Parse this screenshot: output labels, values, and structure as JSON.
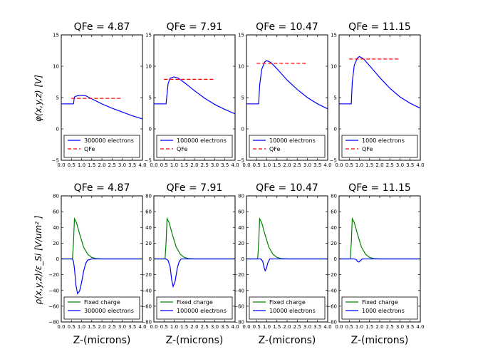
{
  "figure": {
    "ylabel_top": "φ(x,y,z) [V]",
    "ylabel_bottom": "ρ(x,y,z)/ε_Si [V/um² ]",
    "xlabel": "Z-(microns)"
  },
  "colors": {
    "electrons": "#0000ff",
    "qfe": "#ff0000",
    "fixed_charge": "#008000",
    "axes": "#000000"
  },
  "chart_data": [
    {
      "type": "line",
      "title": "QFe = 4.87",
      "ylabel": "φ(x,y,z) [V]",
      "xlabel": "",
      "xlim": [
        0.0,
        4.0
      ],
      "ylim": [
        -5,
        15
      ],
      "xticks": [
        "0.0",
        "0.5",
        "1.0",
        "1.5",
        "2.0",
        "2.5",
        "3.0",
        "3.5",
        "4.0"
      ],
      "yticks": [
        "−5",
        "0",
        "5",
        "10",
        "15"
      ],
      "legend": [
        "300000 electrons",
        "QFe"
      ],
      "series": [
        {
          "name": "300000 electrons",
          "color": "#0000ff",
          "x": [
            0,
            0.6,
            0.65,
            0.8,
            1.0,
            1.2,
            1.5,
            2.0,
            2.5,
            3.0,
            3.5,
            4.0
          ],
          "y": [
            4,
            4,
            5.1,
            5.3,
            5.35,
            5.3,
            4.8,
            4.0,
            3.3,
            2.7,
            2.1,
            1.6
          ]
        },
        {
          "name": "QFe",
          "color": "#ff0000",
          "dashed": true,
          "x": [
            0.5,
            3.0
          ],
          "y": [
            4.87,
            4.87
          ]
        }
      ]
    },
    {
      "type": "line",
      "title": "QFe = 7.91",
      "ylabel": "",
      "xlabel": "",
      "xlim": [
        0.0,
        4.0
      ],
      "ylim": [
        -5,
        15
      ],
      "xticks": [
        "0.0",
        "0.5",
        "1.0",
        "1.5",
        "2.0",
        "2.5",
        "3.0",
        "3.5",
        "4.0"
      ],
      "yticks": [
        "−5",
        "0",
        "5",
        "10",
        "15"
      ],
      "legend": [
        "100000 electrons",
        "QFe"
      ],
      "series": [
        {
          "name": "100000 electrons",
          "color": "#0000ff",
          "x": [
            0,
            0.6,
            0.7,
            0.8,
            1.0,
            1.2,
            1.5,
            2.0,
            2.5,
            3.0,
            3.5,
            4.0
          ],
          "y": [
            4,
            4,
            7.2,
            8.1,
            8.3,
            8.1,
            7.4,
            6.1,
            4.9,
            3.9,
            3.1,
            2.4
          ]
        },
        {
          "name": "QFe",
          "color": "#ff0000",
          "dashed": true,
          "x": [
            0.5,
            3.0
          ],
          "y": [
            7.91,
            7.91
          ]
        }
      ]
    },
    {
      "type": "line",
      "title": "QFe = 10.47",
      "ylabel": "",
      "xlabel": "",
      "xlim": [
        0.0,
        4.0
      ],
      "ylim": [
        -5,
        15
      ],
      "xticks": [
        "0.0",
        "0.5",
        "1.0",
        "1.5",
        "2.0",
        "2.5",
        "3.0",
        "3.5",
        "4.0"
      ],
      "yticks": [
        "−5",
        "0",
        "5",
        "10",
        "15"
      ],
      "legend": [
        "10000 electrons",
        "QFe"
      ],
      "series": [
        {
          "name": "10000 electrons",
          "color": "#0000ff",
          "x": [
            0,
            0.6,
            0.65,
            0.75,
            0.9,
            1.0,
            1.2,
            1.5,
            2.0,
            2.5,
            3.0,
            3.5,
            4.0
          ],
          "y": [
            4,
            4,
            7,
            9.5,
            10.7,
            10.9,
            10.6,
            9.6,
            7.8,
            6.3,
            5.0,
            4.0,
            3.2
          ]
        },
        {
          "name": "QFe",
          "color": "#ff0000",
          "dashed": true,
          "x": [
            0.5,
            3.0
          ],
          "y": [
            10.47,
            10.47
          ]
        }
      ]
    },
    {
      "type": "line",
      "title": "QFe = 11.15",
      "ylabel": "",
      "xlabel": "",
      "xlim": [
        0.0,
        4.0
      ],
      "ylim": [
        -5,
        15
      ],
      "xticks": [
        "0.0",
        "0.5",
        "1.0",
        "1.5",
        "2.0",
        "2.5",
        "3.0",
        "3.5",
        "4.0"
      ],
      "yticks": [
        "−5",
        "0",
        "5",
        "10",
        "15"
      ],
      "legend": [
        "1000 electrons",
        "QFe"
      ],
      "series": [
        {
          "name": "1000 electrons",
          "color": "#0000ff",
          "x": [
            0,
            0.6,
            0.65,
            0.75,
            0.9,
            1.0,
            1.2,
            1.5,
            2.0,
            2.5,
            3.0,
            3.5,
            4.0
          ],
          "y": [
            4,
            4,
            7.5,
            10.2,
            11.3,
            11.55,
            11.2,
            10.1,
            8.2,
            6.5,
            5.1,
            4.1,
            3.3
          ]
        },
        {
          "name": "QFe",
          "color": "#ff0000",
          "dashed": true,
          "x": [
            0.5,
            3.0
          ],
          "y": [
            11.15,
            11.15
          ]
        }
      ]
    },
    {
      "type": "line",
      "title": "QFe = 4.87",
      "ylabel": "ρ(x,y,z)/ε_Si [V/um² ]",
      "xlabel": "Z-(microns)",
      "xlim": [
        0.0,
        4.0
      ],
      "ylim": [
        -80,
        80
      ],
      "xticks": [
        "0.0",
        "0.5",
        "1.0",
        "1.5",
        "2.0",
        "2.5",
        "3.0",
        "3.5",
        "4.0"
      ],
      "yticks": [
        "−80",
        "−60",
        "−40",
        "−20",
        "0",
        "20",
        "40",
        "60",
        "80"
      ],
      "legend": [
        "Fixed charge",
        "300000 electrons"
      ],
      "series": [
        {
          "name": "Fixed charge",
          "color": "#008000",
          "x": [
            0,
            0.55,
            0.6,
            0.65,
            0.75,
            0.9,
            1.1,
            1.3,
            1.5,
            1.7,
            2.0,
            4.0
          ],
          "y": [
            0,
            0,
            20,
            51,
            46,
            32,
            15,
            6,
            2,
            0.5,
            0,
            0
          ]
        },
        {
          "name": "300000 electrons",
          "color": "#0000ff",
          "x": [
            0,
            0.55,
            0.6,
            0.65,
            0.72,
            0.8,
            0.9,
            1.0,
            1.1,
            1.2,
            1.3,
            1.5,
            4.0
          ],
          "y": [
            0,
            0,
            -3,
            -12,
            -33,
            -44,
            -41,
            -30,
            -16,
            -6,
            -1.5,
            0,
            0
          ]
        }
      ]
    },
    {
      "type": "line",
      "title": "QFe = 7.91",
      "ylabel": "",
      "xlabel": "Z-(microns)",
      "xlim": [
        0.0,
        4.0
      ],
      "ylim": [
        -80,
        80
      ],
      "xticks": [
        "0.0",
        "0.5",
        "1.0",
        "1.5",
        "2.0",
        "2.5",
        "3.0",
        "3.5",
        "4.0"
      ],
      "yticks": [
        "−80",
        "−60",
        "−40",
        "−20",
        "0",
        "20",
        "40",
        "60",
        "80"
      ],
      "legend": [
        "Fixed charge",
        "100000 electrons"
      ],
      "series": [
        {
          "name": "Fixed charge",
          "color": "#008000",
          "x": [
            0,
            0.55,
            0.6,
            0.65,
            0.75,
            0.9,
            1.1,
            1.3,
            1.5,
            1.7,
            2.0,
            4.0
          ],
          "y": [
            0,
            0,
            20,
            51,
            46,
            32,
            15,
            6,
            2,
            0.5,
            0,
            0
          ]
        },
        {
          "name": "100000 electrons",
          "color": "#0000ff",
          "x": [
            0,
            0.6,
            0.7,
            0.8,
            0.88,
            0.95,
            1.05,
            1.15,
            1.25,
            1.35,
            4.0
          ],
          "y": [
            0,
            0,
            -2,
            -10,
            -27,
            -35,
            -28,
            -12,
            -3,
            0,
            0
          ]
        }
      ]
    },
    {
      "type": "line",
      "title": "QFe = 10.47",
      "ylabel": "",
      "xlabel": "Z-(microns)",
      "xlim": [
        0.0,
        4.0
      ],
      "ylim": [
        -80,
        80
      ],
      "xticks": [
        "0.0",
        "0.5",
        "1.0",
        "1.5",
        "2.0",
        "2.5",
        "3.0",
        "3.5",
        "4.0"
      ],
      "yticks": [
        "−80",
        "−60",
        "−40",
        "−20",
        "0",
        "20",
        "40",
        "60",
        "80"
      ],
      "legend": [
        "Fixed charge",
        "10000 electrons"
      ],
      "series": [
        {
          "name": "Fixed charge",
          "color": "#008000",
          "x": [
            0,
            0.55,
            0.6,
            0.65,
            0.75,
            0.9,
            1.1,
            1.3,
            1.5,
            1.7,
            2.0,
            4.0
          ],
          "y": [
            0,
            0,
            20,
            51,
            46,
            32,
            15,
            6,
            2,
            0.5,
            0,
            0
          ]
        },
        {
          "name": "10000 electrons",
          "color": "#0000ff",
          "x": [
            0,
            0.7,
            0.8,
            0.86,
            0.92,
            0.98,
            1.05,
            1.15,
            4.0
          ],
          "y": [
            0,
            0,
            -3,
            -10,
            -15,
            -12,
            -5,
            0,
            0
          ]
        }
      ]
    },
    {
      "type": "line",
      "title": "QFe = 11.15",
      "ylabel": "",
      "xlabel": "Z-(microns)",
      "xlim": [
        0.0,
        4.0
      ],
      "ylim": [
        -80,
        80
      ],
      "xticks": [
        "0.0",
        "0.5",
        "1.0",
        "1.5",
        "2.0",
        "2.5",
        "3.0",
        "3.5",
        "4.0"
      ],
      "yticks": [
        "−80",
        "−60",
        "−40",
        "−20",
        "0",
        "20",
        "40",
        "60",
        "80"
      ],
      "legend": [
        "Fixed charge",
        "1000 electrons"
      ],
      "series": [
        {
          "name": "Fixed charge",
          "color": "#008000",
          "x": [
            0,
            0.55,
            0.6,
            0.65,
            0.75,
            0.9,
            1.1,
            1.3,
            1.5,
            1.7,
            2.0,
            4.0
          ],
          "y": [
            0,
            0,
            20,
            51,
            46,
            32,
            15,
            6,
            2,
            0.5,
            0,
            0
          ]
        },
        {
          "name": "1000 electrons",
          "color": "#0000ff",
          "x": [
            0,
            0.75,
            0.85,
            0.92,
            0.98,
            1.05,
            1.15,
            4.0
          ],
          "y": [
            0,
            0,
            -1,
            -3.5,
            -4,
            -2,
            0,
            0
          ]
        }
      ]
    }
  ]
}
